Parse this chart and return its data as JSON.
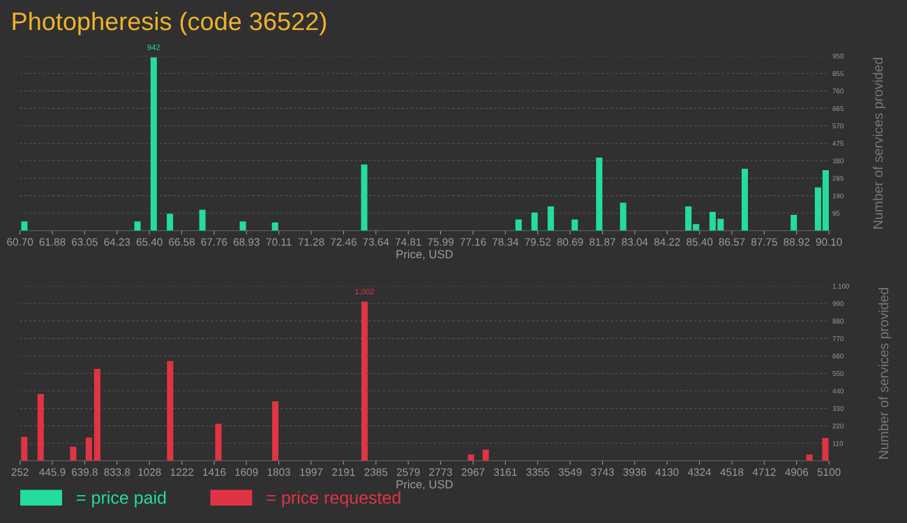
{
  "chart_data": [
    {
      "type": "bar",
      "title": "Photopheresis (code 36522)",
      "xlabel": "Price, USD",
      "ylabel": "Number of services provided",
      "x": [
        60.86,
        64.97,
        65.56,
        66.15,
        67.33,
        68.8,
        69.97,
        73.21,
        78.82,
        79.4,
        79.99,
        80.86,
        81.75,
        82.62,
        84.99,
        85.27,
        85.87,
        86.16,
        87.04,
        88.82,
        89.7,
        89.98
      ],
      "series": [
        {
          "name": "= price paid",
          "color": "#24dc9c",
          "values": [
            50,
            50,
            942,
            92,
            114,
            50,
            45,
            360,
            61,
            99,
            132,
            61,
            397,
            152,
            132,
            36,
            102,
            64,
            337,
            86,
            235,
            329
          ],
          "value_labels": [
            null,
            null,
            "942",
            null,
            null,
            null,
            null,
            null,
            null,
            null,
            null,
            null,
            null,
            null,
            null,
            null,
            null,
            null,
            null,
            null,
            null,
            null
          ]
        }
      ],
      "xlim": [
        60.7,
        90.1
      ],
      "xticks": [
        {
          "value": 60.7,
          "label": "60.70"
        },
        {
          "value": 61.876,
          "label": "61.88"
        },
        {
          "value": 63.052,
          "label": "63.05"
        },
        {
          "value": 64.228,
          "label": "64.23"
        },
        {
          "value": 65.404,
          "label": "65.40"
        },
        {
          "value": 66.58,
          "label": "66.58"
        },
        {
          "value": 67.756,
          "label": "67.76"
        },
        {
          "value": 68.932,
          "label": "68.93"
        },
        {
          "value": 70.108,
          "label": "70.11"
        },
        {
          "value": 71.284,
          "label": "71.28"
        },
        {
          "value": 72.46,
          "label": "72.46"
        },
        {
          "value": 73.636,
          "label": "73.64"
        },
        {
          "value": 74.812,
          "label": "74.81"
        },
        {
          "value": 75.988,
          "label": "75.99"
        },
        {
          "value": 77.164,
          "label": "77.16"
        },
        {
          "value": 78.34,
          "label": "78.34"
        },
        {
          "value": 79.516,
          "label": "79.52"
        },
        {
          "value": 80.692,
          "label": "80.69"
        },
        {
          "value": 81.868,
          "label": "81.87"
        },
        {
          "value": 83.044,
          "label": "83.04"
        },
        {
          "value": 84.22,
          "label": "84.22"
        },
        {
          "value": 85.396,
          "label": "85.40"
        },
        {
          "value": 86.572,
          "label": "86.57"
        },
        {
          "value": 87.748,
          "label": "87.75"
        },
        {
          "value": 88.924,
          "label": "88.92"
        },
        {
          "value": 90.1,
          "label": "90.10"
        }
      ],
      "ylim": [
        0,
        950
      ],
      "yticks": [
        95,
        190,
        285,
        380,
        475,
        570,
        665,
        760,
        855,
        950
      ],
      "grid": "y",
      "legend": "bottom left"
    },
    {
      "type": "bar",
      "xlabel": "Price, USD",
      "ylabel": "Number of services provided",
      "x": [
        278,
        376,
        571,
        665,
        715,
        1152,
        1441,
        1782,
        2317,
        2955,
        3043,
        4983,
        5078
      ],
      "series": [
        {
          "name": "= price requested",
          "color": "#e03444",
          "values": [
            150,
            421,
            89,
            146,
            579,
            628,
            233,
            374,
            1002,
            39,
            70,
            39,
            144
          ],
          "value_labels": [
            null,
            null,
            null,
            null,
            null,
            null,
            null,
            null,
            "1,002",
            null,
            null,
            null,
            null
          ]
        }
      ],
      "xlim": [
        252,
        5100
      ],
      "xticks": [
        252,
        {
          "value": 445.9,
          "label": "445.9"
        },
        {
          "value": 639.8,
          "label": "639.8"
        },
        {
          "value": 833.8,
          "label": "833.8"
        },
        1028,
        1222,
        1416,
        1609,
        1803,
        1997,
        2191,
        2385,
        2579,
        2773,
        2967,
        3161,
        3355,
        3549,
        3743,
        3936,
        4130,
        4324,
        4518,
        4712,
        4906,
        5100
      ],
      "ylim": [
        0,
        1100
      ],
      "yticks": [
        110,
        220,
        330,
        440,
        550,
        660,
        770,
        880,
        990,
        {
          "value": 1100,
          "label": "1,100"
        }
      ],
      "grid": "y",
      "legend": "bottom left"
    }
  ]
}
